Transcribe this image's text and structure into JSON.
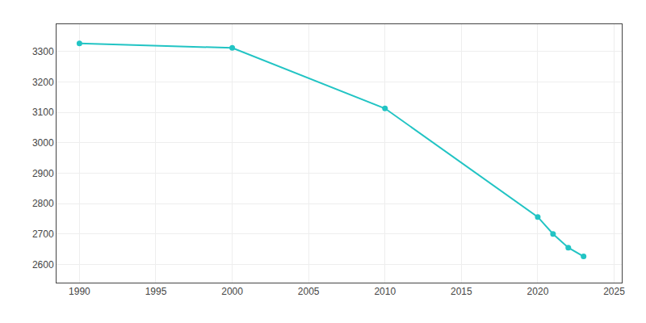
{
  "chart_data": {
    "type": "line",
    "x": [
      1990,
      2000,
      2010,
      2020,
      2021,
      2022,
      2023
    ],
    "values": [
      3327,
      3312,
      3113,
      2756,
      2700,
      2655,
      2626
    ],
    "color": "#22c4c4",
    "marker": "circle",
    "xlim": [
      1988.5,
      2025.5
    ],
    "ylim": [
      2540,
      3390
    ],
    "xticks": [
      1990,
      1995,
      2000,
      2005,
      2010,
      2015,
      2020,
      2025
    ],
    "yticks": [
      2600,
      2700,
      2800,
      2900,
      3000,
      3100,
      3200,
      3300
    ],
    "grid": true
  }
}
